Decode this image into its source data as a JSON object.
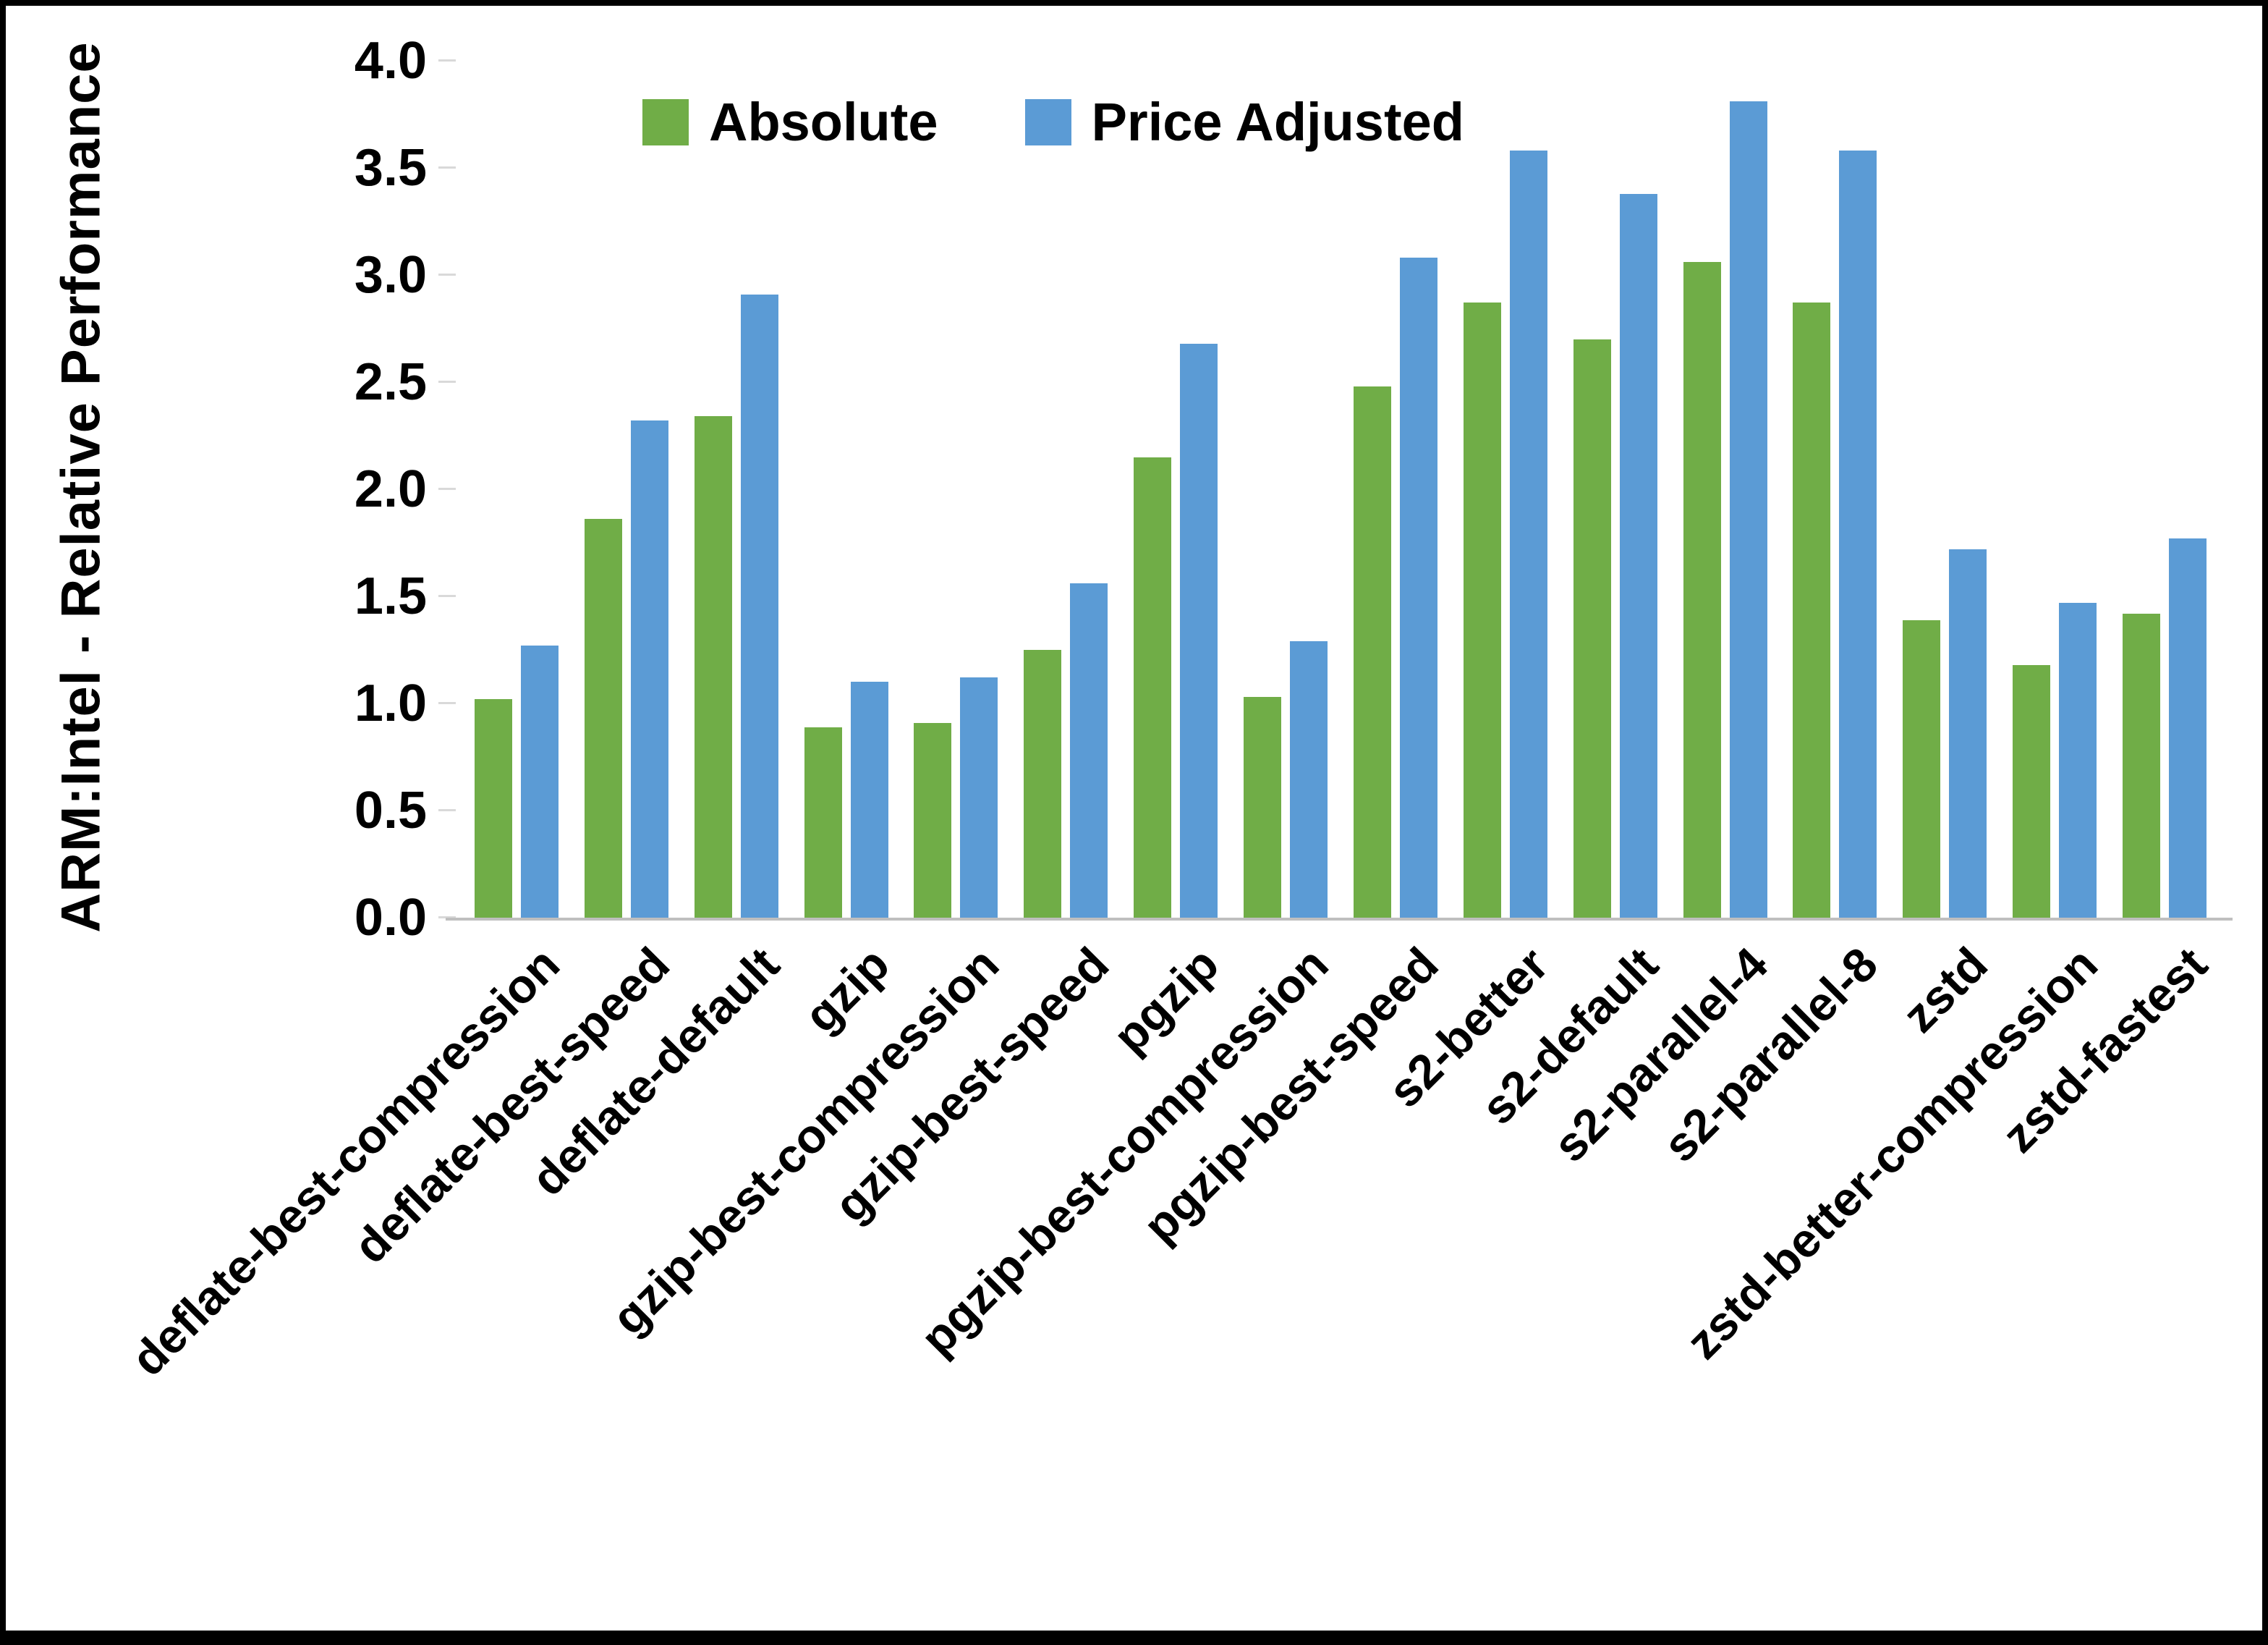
{
  "page": {
    "background": "#ffffff",
    "frame_color": "#000000"
  },
  "chart_data": {
    "type": "bar",
    "title": "",
    "xlabel": "",
    "ylabel": "ARM:Intel - Relative Performance",
    "ylim": [
      0,
      4.0
    ],
    "ytick_step": 0.5,
    "yticks": [
      "0.0",
      "0.5",
      "1.0",
      "1.5",
      "2.0",
      "2.5",
      "3.0",
      "3.5",
      "4.0"
    ],
    "grid": false,
    "legend_position": "top-center",
    "axis_line_color": "#bfbfbf",
    "categories": [
      "deflate-best-compression",
      "deflate-best-speed",
      "deflate-default",
      "gzip",
      "gzip-best-compression",
      "gzip-best-speed",
      "pgzip",
      "pgzip-best-compression",
      "pgzip-best-speed",
      "s2-better",
      "s2-default",
      "s2-parallel-4",
      "s2-parallel-8",
      "zstd",
      "zstd-better-compression",
      "zstd-fastest"
    ],
    "series": [
      {
        "name": "Absolute",
        "color": "#70AD47",
        "values": [
          1.02,
          1.86,
          2.34,
          0.89,
          0.91,
          1.25,
          2.15,
          1.03,
          2.48,
          2.87,
          2.7,
          3.06,
          2.87,
          1.39,
          1.18,
          1.42
        ]
      },
      {
        "name": "Price Adjusted",
        "color": "#5B9BD5",
        "values": [
          1.27,
          2.32,
          2.91,
          1.1,
          1.12,
          1.56,
          2.68,
          1.29,
          3.08,
          3.58,
          3.38,
          3.81,
          3.58,
          1.72,
          1.47,
          1.77
        ]
      }
    ]
  }
}
